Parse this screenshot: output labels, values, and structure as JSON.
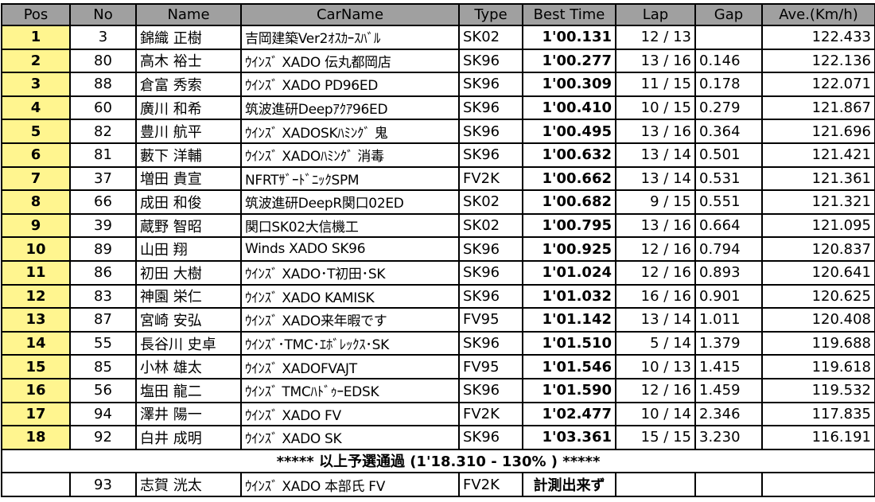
{
  "headers": [
    "Pos",
    "No",
    "Name",
    "CarName",
    "Type",
    "Best Time",
    "Lap",
    "Gap",
    "Ave.(Km/h)"
  ],
  "rows": [
    {
      "pos": "1",
      "no": "3",
      "name": "錦織 正樹",
      "car": "吉岡建築Ver2ｵｽｶｰｽﾊﾞﾙ",
      "type": "SK02",
      "best": "1'00.131",
      "lap": "12 / 13",
      "gap": "",
      "ave": "122.433"
    },
    {
      "pos": "2",
      "no": "80",
      "name": "高木 裕士",
      "car": "ｳｲﾝｽﾞ XADO 伝丸都岡店",
      "type": "SK96",
      "best": "1'00.277",
      "lap": "13 / 16",
      "gap": "0.146",
      "ave": "122.136"
    },
    {
      "pos": "3",
      "no": "88",
      "name": "倉富 秀索",
      "car": "ｳｲﾝｽﾞ XADO PD96ED",
      "type": "SK96",
      "best": "1'00.309",
      "lap": "11 / 15",
      "gap": "0.178",
      "ave": "122.071"
    },
    {
      "pos": "4",
      "no": "60",
      "name": "廣川 和希",
      "car": "筑波進研Deepｱｸｱ96ED",
      "type": "SK96",
      "best": "1'00.410",
      "lap": "10 / 15",
      "gap": "0.279",
      "ave": "121.867"
    },
    {
      "pos": "5",
      "no": "82",
      "name": "豊川 航平",
      "car": "ｳｲﾝｽﾞ XADOSKﾊﾐﾝｸﾞ 鬼",
      "type": "SK96",
      "best": "1'00.495",
      "lap": "13 / 16",
      "gap": "0.364",
      "ave": "121.696"
    },
    {
      "pos": "6",
      "no": "81",
      "name": "藪下 洋輔",
      "car": "ｳｲﾝｽﾞ XADOﾊﾐﾝｸﾞ 消毒",
      "type": "SK96",
      "best": "1'00.632",
      "lap": "13 / 14",
      "gap": "0.501",
      "ave": "121.421"
    },
    {
      "pos": "7",
      "no": "37",
      "name": "増田 貴宣",
      "car": "NFRTｻﾞｰﾄﾞﾆｯｸSPM",
      "type": "FV2K",
      "best": "1'00.662",
      "lap": "13 / 14",
      "gap": "0.531",
      "ave": "121.361"
    },
    {
      "pos": "8",
      "no": "66",
      "name": "成田 和俊",
      "car": "筑波進研DeepR関口02ED",
      "type": "SK02",
      "best": "1'00.682",
      "lap": "9 / 15",
      "gap": "0.551",
      "ave": "121.321"
    },
    {
      "pos": "9",
      "no": "39",
      "name": "蔵野 智昭",
      "car": "関口SK02大信機工",
      "type": "SK02",
      "best": "1'00.795",
      "lap": "13 / 16",
      "gap": "0.664",
      "ave": "121.095"
    },
    {
      "pos": "10",
      "no": "89",
      "name": "山田 翔",
      "car": "Winds XADO SK96",
      "type": "SK96",
      "best": "1'00.925",
      "lap": "12 / 16",
      "gap": "0.794",
      "ave": "120.837"
    },
    {
      "pos": "11",
      "no": "86",
      "name": "初田 大樹",
      "car": "ｳｲﾝｽﾞ XADO･T初田･SK",
      "type": "SK96",
      "best": "1'01.024",
      "lap": "12 / 16",
      "gap": "0.893",
      "ave": "120.641"
    },
    {
      "pos": "12",
      "no": "83",
      "name": "神園 栄仁",
      "car": "ｳｲﾝｽﾞ XADO KAMISK",
      "type": "SK96",
      "best": "1'01.032",
      "lap": "16 / 16",
      "gap": "0.901",
      "ave": "120.625"
    },
    {
      "pos": "13",
      "no": "87",
      "name": "宮崎 安弘",
      "car": "ｳｲﾝｽﾞ XADO来年暇です",
      "type": "FV95",
      "best": "1'01.142",
      "lap": "13 / 14",
      "gap": "1.011",
      "ave": "120.408"
    },
    {
      "pos": "14",
      "no": "55",
      "name": "長谷川 史卓",
      "car": "ｳｲﾝｽﾞ･TMC･ｴﾎﾞﾚｯｸｽ･SK",
      "type": "SK96",
      "best": "1'01.510",
      "lap": "5 / 14",
      "gap": "1.379",
      "ave": "119.688"
    },
    {
      "pos": "15",
      "no": "85",
      "name": "小林 雄太",
      "car": "ｳｲﾝｽﾞ XADOFVAJT",
      "type": "FV95",
      "best": "1'01.546",
      "lap": "10 / 13",
      "gap": "1.415",
      "ave": "119.618"
    },
    {
      "pos": "16",
      "no": "56",
      "name": "塩田 龍二",
      "car": "ｳｲﾝｽﾞ TMCﾊﾄﾞｩｰEDSK",
      "type": "SK96",
      "best": "1'01.590",
      "lap": "12 / 16",
      "gap": "1.459",
      "ave": "119.532"
    },
    {
      "pos": "17",
      "no": "94",
      "name": "澤井 陽一",
      "car": "ｳｲﾝｽﾞ XADO FV",
      "type": "FV2K",
      "best": "1'02.477",
      "lap": "10 / 14",
      "gap": "2.346",
      "ave": "117.835"
    },
    {
      "pos": "18",
      "no": "92",
      "name": "白井 成明",
      "car": "ｳｲﾝｽﾞ XADO SK",
      "type": "SK96",
      "best": "1'03.361",
      "lap": "15 / 15",
      "gap": "3.230",
      "ave": "116.191"
    }
  ],
  "qualify_note": "***** 以上予選通過 (1'18.310 - 130% ) *****",
  "non_qualified": [
    {
      "pos": "",
      "no": "93",
      "name": "志賀 洸太",
      "car": "ｳｲﾝｽﾞ XADO 本部氏 FV",
      "type": "FV2K",
      "best": "計測出来ず",
      "lap": "",
      "gap": "",
      "ave": ""
    }
  ],
  "colors": {
    "header_bg": "#a0a0a0",
    "pos_bg": "#fff58f"
  }
}
